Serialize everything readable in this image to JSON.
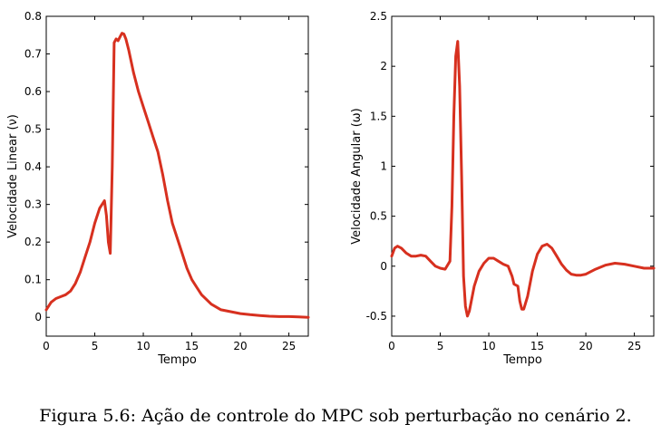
{
  "caption": "Figura 5.6: Ação de controle do MPC sob perturbação no cenário 2.",
  "chart_data": [
    {
      "type": "line",
      "xlabel": "Tempo",
      "ylabel": "Velocidade Linear (ν)",
      "xlim": [
        0,
        27
      ],
      "ylim": [
        -0.05,
        0.8
      ],
      "xticks": [
        0,
        5,
        10,
        15,
        20,
        25
      ],
      "yticks": [
        0,
        0.1,
        0.2,
        0.3,
        0.4,
        0.5,
        0.6,
        0.7,
        0.8
      ],
      "grid": false,
      "color": "#d7301f",
      "series": [
        {
          "x": [
            0,
            0.5,
            1,
            1.5,
            2,
            2.5,
            3,
            3.5,
            4,
            4.5,
            5,
            5.5,
            6,
            6.2,
            6.4,
            6.6,
            6.8,
            7.0,
            7.2,
            7.4,
            7.6,
            7.8,
            8.0,
            8.2,
            8.5,
            9,
            9.5,
            10,
            10.5,
            11,
            11.5,
            12,
            12.5,
            13,
            13.5,
            14,
            14.5,
            15,
            15.5,
            16,
            17,
            18,
            19,
            20,
            21,
            22,
            23,
            24,
            25,
            26,
            27
          ],
          "y": [
            0.02,
            0.04,
            0.05,
            0.055,
            0.06,
            0.07,
            0.09,
            0.12,
            0.16,
            0.2,
            0.25,
            0.29,
            0.31,
            0.27,
            0.2,
            0.17,
            0.4,
            0.73,
            0.74,
            0.735,
            0.745,
            0.755,
            0.753,
            0.74,
            0.71,
            0.65,
            0.6,
            0.56,
            0.52,
            0.48,
            0.44,
            0.38,
            0.31,
            0.25,
            0.21,
            0.17,
            0.13,
            0.1,
            0.08,
            0.06,
            0.035,
            0.02,
            0.015,
            0.01,
            0.007,
            0.005,
            0.003,
            0.002,
            0.002,
            0.001,
            0.0
          ]
        }
      ]
    },
    {
      "type": "line",
      "xlabel": "Tempo",
      "ylabel": "Velocidade Angular (ω)",
      "xlim": [
        0,
        27
      ],
      "ylim": [
        -0.7,
        2.5
      ],
      "xticks": [
        0,
        5,
        10,
        15,
        20,
        25
      ],
      "yticks": [
        -0.5,
        0,
        0.5,
        1,
        1.5,
        2,
        2.5
      ],
      "grid": false,
      "color": "#d7301f",
      "series": [
        {
          "x": [
            0,
            0.3,
            0.6,
            1.0,
            1.5,
            2.0,
            2.5,
            3.0,
            3.5,
            4.0,
            4.5,
            5.0,
            5.5,
            6.0,
            6.2,
            6.4,
            6.6,
            6.8,
            7.0,
            7.2,
            7.4,
            7.6,
            7.8,
            8.0,
            8.5,
            9.0,
            9.5,
            10.0,
            10.5,
            11.0,
            11.5,
            12.0,
            12.4,
            12.6,
            13.0,
            13.2,
            13.4,
            13.6,
            14.0,
            14.5,
            15.0,
            15.5,
            16.0,
            16.5,
            17.0,
            17.5,
            18.0,
            18.5,
            19.0,
            19.5,
            20.0,
            21.0,
            22.0,
            23.0,
            24.0,
            25.0,
            26.0,
            27.0
          ],
          "y": [
            0.1,
            0.18,
            0.2,
            0.18,
            0.13,
            0.1,
            0.1,
            0.11,
            0.1,
            0.05,
            0.0,
            -0.02,
            -0.03,
            0.05,
            0.6,
            1.5,
            2.1,
            2.25,
            1.8,
            0.9,
            -0.1,
            -0.4,
            -0.5,
            -0.45,
            -0.2,
            -0.05,
            0.03,
            0.08,
            0.08,
            0.05,
            0.02,
            0.0,
            -0.1,
            -0.18,
            -0.2,
            -0.35,
            -0.43,
            -0.43,
            -0.3,
            -0.05,
            0.12,
            0.2,
            0.22,
            0.18,
            0.1,
            0.02,
            -0.04,
            -0.08,
            -0.09,
            -0.09,
            -0.08,
            -0.03,
            0.01,
            0.03,
            0.02,
            0.0,
            -0.02,
            -0.02
          ]
        }
      ]
    }
  ]
}
